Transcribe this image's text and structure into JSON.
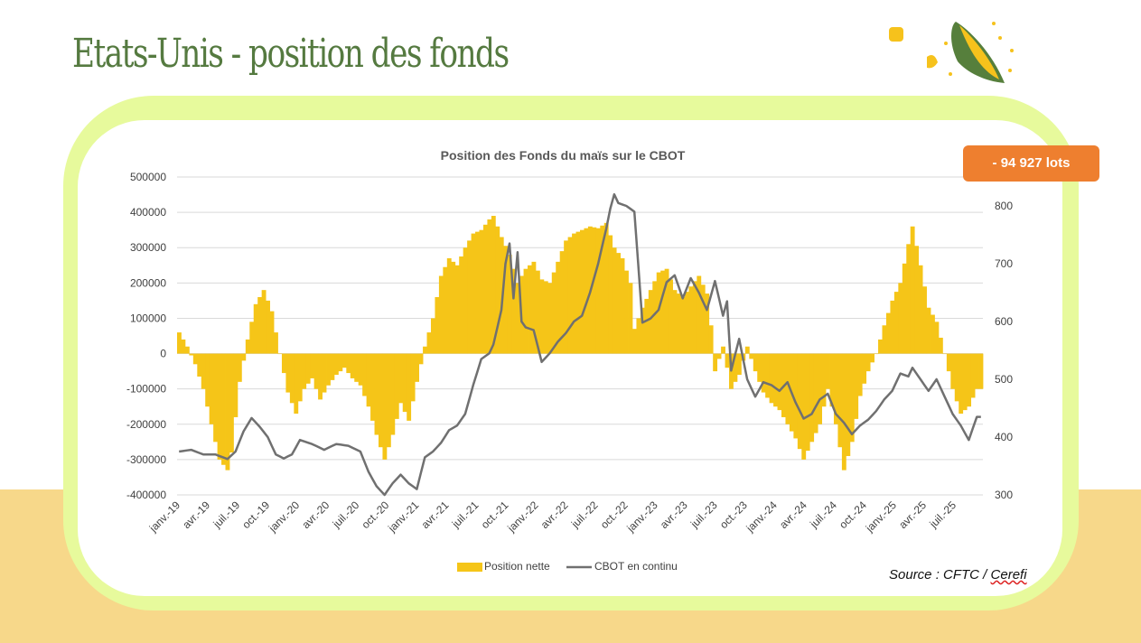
{
  "slide": {
    "title": "Etats-Unis - position des fonds",
    "badge": "-  94 927 lots",
    "source_prefix": "Source : CFTC / ",
    "source_link": "Cerefi"
  },
  "colors": {
    "bar": "#f5c518",
    "line": "#707070",
    "title": "#557a40",
    "badge": "#ee7f2f",
    "frame": "#e7fa9c",
    "band": "#f7d88a"
  },
  "chart_data": {
    "type": "bar",
    "title": "Position des Fonds du maïs sur le CBOT",
    "xlabel": "",
    "ylabel": "",
    "ylim": [
      -400000,
      500000
    ],
    "y_ticks": [
      "500000",
      "400000",
      "300000",
      "200000",
      "100000",
      "0",
      "-100000",
      "-200000",
      "-300000",
      "-400000"
    ],
    "y2lim": [
      300,
      850
    ],
    "y2_ticks": [
      "800",
      "700",
      "600",
      "500",
      "400",
      "300"
    ],
    "x_tick_labels": [
      "janv.-19",
      "avr.-19",
      "juil.-19",
      "oct.-19",
      "janv.-20",
      "avr.-20",
      "juil.-20",
      "oct.-20",
      "janv.-21",
      "avr.-21",
      "juil.-21",
      "oct.-21",
      "janv.-22",
      "avr.-22",
      "juil.-22",
      "oct.-22",
      "janv.-23",
      "avr.-23",
      "juil.-23",
      "oct.-23",
      "janv.-24",
      "avr.-24",
      "juil.-24",
      "oct.-24",
      "janv.-25",
      "avr.-25",
      "juil.-25"
    ],
    "grid": true,
    "legend_position": "bottom",
    "series": [
      {
        "name": "Position nette",
        "type": "bar",
        "axis": "left",
        "anchors": [
          [
            0,
            60000
          ],
          [
            2,
            20000
          ],
          [
            4,
            -30000
          ],
          [
            6,
            -100000
          ],
          [
            8,
            -200000
          ],
          [
            10,
            -300000
          ],
          [
            12,
            -330000
          ],
          [
            13,
            -280000
          ],
          [
            14,
            -180000
          ],
          [
            15,
            -80000
          ],
          [
            17,
            40000
          ],
          [
            19,
            140000
          ],
          [
            21,
            180000
          ],
          [
            23,
            120000
          ],
          [
            25,
            0
          ],
          [
            27,
            -110000
          ],
          [
            29,
            -170000
          ],
          [
            31,
            -100000
          ],
          [
            33,
            -70000
          ],
          [
            35,
            -130000
          ],
          [
            37,
            -90000
          ],
          [
            39,
            -60000
          ],
          [
            41,
            -40000
          ],
          [
            43,
            -70000
          ],
          [
            45,
            -90000
          ],
          [
            47,
            -150000
          ],
          [
            49,
            -230000
          ],
          [
            51,
            -300000
          ],
          [
            53,
            -230000
          ],
          [
            55,
            -140000
          ],
          [
            57,
            -190000
          ],
          [
            59,
            -80000
          ],
          [
            61,
            20000
          ],
          [
            63,
            100000
          ],
          [
            65,
            220000
          ],
          [
            67,
            270000
          ],
          [
            69,
            250000
          ],
          [
            71,
            300000
          ],
          [
            73,
            340000
          ],
          [
            75,
            350000
          ],
          [
            77,
            380000
          ],
          [
            78,
            390000
          ],
          [
            80,
            330000
          ],
          [
            82,
            280000
          ],
          [
            84,
            200000
          ],
          [
            86,
            240000
          ],
          [
            88,
            260000
          ],
          [
            90,
            210000
          ],
          [
            92,
            200000
          ],
          [
            94,
            260000
          ],
          [
            96,
            320000
          ],
          [
            98,
            340000
          ],
          [
            100,
            350000
          ],
          [
            102,
            360000
          ],
          [
            104,
            355000
          ],
          [
            106,
            370000
          ],
          [
            108,
            300000
          ],
          [
            110,
            270000
          ],
          [
            112,
            200000
          ],
          [
            113,
            70000
          ],
          [
            115,
            130000
          ],
          [
            117,
            180000
          ],
          [
            119,
            230000
          ],
          [
            121,
            240000
          ],
          [
            123,
            180000
          ],
          [
            125,
            160000
          ],
          [
            127,
            190000
          ],
          [
            129,
            220000
          ],
          [
            131,
            170000
          ],
          [
            132,
            80000
          ],
          [
            133,
            -50000
          ],
          [
            135,
            20000
          ],
          [
            137,
            -100000
          ],
          [
            139,
            -60000
          ],
          [
            141,
            20000
          ],
          [
            143,
            -50000
          ],
          [
            145,
            -110000
          ],
          [
            147,
            -140000
          ],
          [
            149,
            -160000
          ],
          [
            151,
            -200000
          ],
          [
            153,
            -240000
          ],
          [
            155,
            -300000
          ],
          [
            157,
            -250000
          ],
          [
            159,
            -200000
          ],
          [
            161,
            -100000
          ],
          [
            163,
            -200000
          ],
          [
            165,
            -330000
          ],
          [
            167,
            -250000
          ],
          [
            169,
            -120000
          ],
          [
            171,
            -50000
          ],
          [
            173,
            0
          ],
          [
            175,
            80000
          ],
          [
            177,
            150000
          ],
          [
            179,
            200000
          ],
          [
            181,
            310000
          ],
          [
            182,
            360000
          ],
          [
            184,
            250000
          ],
          [
            186,
            130000
          ],
          [
            188,
            90000
          ],
          [
            190,
            0
          ],
          [
            192,
            -100000
          ],
          [
            194,
            -170000
          ],
          [
            196,
            -150000
          ],
          [
            198,
            -100000
          ]
        ]
      },
      {
        "name": "CBOT en continu",
        "type": "line",
        "axis": "right",
        "anchors": [
          [
            0,
            375
          ],
          [
            3,
            378
          ],
          [
            6,
            370
          ],
          [
            9,
            370
          ],
          [
            12,
            362
          ],
          [
            14,
            375
          ],
          [
            16,
            410
          ],
          [
            18,
            433
          ],
          [
            20,
            418
          ],
          [
            22,
            400
          ],
          [
            24,
            370
          ],
          [
            26,
            363
          ],
          [
            28,
            370
          ],
          [
            30,
            395
          ],
          [
            33,
            388
          ],
          [
            36,
            378
          ],
          [
            39,
            388
          ],
          [
            42,
            385
          ],
          [
            45,
            375
          ],
          [
            47,
            340
          ],
          [
            49,
            315
          ],
          [
            51,
            300
          ],
          [
            53,
            320
          ],
          [
            55,
            335
          ],
          [
            57,
            320
          ],
          [
            59,
            310
          ],
          [
            61,
            365
          ],
          [
            63,
            375
          ],
          [
            65,
            390
          ],
          [
            67,
            412
          ],
          [
            69,
            420
          ],
          [
            71,
            440
          ],
          [
            73,
            490
          ],
          [
            75,
            535
          ],
          [
            77,
            545
          ],
          [
            78,
            560
          ],
          [
            80,
            620
          ],
          [
            81,
            700
          ],
          [
            82,
            735
          ],
          [
            83,
            640
          ],
          [
            84,
            720
          ],
          [
            85,
            600
          ],
          [
            86,
            590
          ],
          [
            88,
            585
          ],
          [
            90,
            530
          ],
          [
            92,
            545
          ],
          [
            94,
            565
          ],
          [
            96,
            580
          ],
          [
            98,
            600
          ],
          [
            100,
            610
          ],
          [
            102,
            650
          ],
          [
            104,
            700
          ],
          [
            106,
            760
          ],
          [
            107,
            795
          ],
          [
            108,
            820
          ],
          [
            109,
            805
          ],
          [
            111,
            800
          ],
          [
            113,
            790
          ],
          [
            115,
            598
          ],
          [
            117,
            605
          ],
          [
            119,
            620
          ],
          [
            121,
            668
          ],
          [
            123,
            680
          ],
          [
            125,
            640
          ],
          [
            127,
            675
          ],
          [
            129,
            650
          ],
          [
            131,
            620
          ],
          [
            133,
            670
          ],
          [
            135,
            610
          ],
          [
            136,
            635
          ],
          [
            137,
            515
          ],
          [
            139,
            570
          ],
          [
            141,
            500
          ],
          [
            143,
            470
          ],
          [
            145,
            495
          ],
          [
            147,
            490
          ],
          [
            149,
            480
          ],
          [
            151,
            495
          ],
          [
            153,
            460
          ],
          [
            155,
            432
          ],
          [
            157,
            440
          ],
          [
            159,
            465
          ],
          [
            161,
            475
          ],
          [
            163,
            440
          ],
          [
            165,
            425
          ],
          [
            167,
            405
          ],
          [
            169,
            420
          ],
          [
            171,
            430
          ],
          [
            173,
            445
          ],
          [
            175,
            465
          ],
          [
            177,
            480
          ],
          [
            179,
            510
          ],
          [
            181,
            505
          ],
          [
            182,
            520
          ],
          [
            184,
            500
          ],
          [
            186,
            480
          ],
          [
            188,
            500
          ],
          [
            190,
            470
          ],
          [
            192,
            440
          ],
          [
            194,
            420
          ],
          [
            196,
            395
          ],
          [
            198,
            435
          ]
        ]
      }
    ]
  }
}
